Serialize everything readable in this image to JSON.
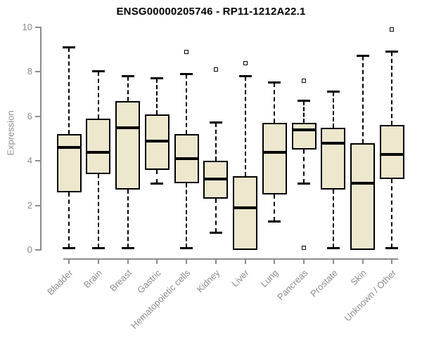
{
  "chart_data": {
    "type": "boxplot",
    "title": "ENSG00000205746 - RP11-1212A22.1",
    "ylabel": "Expression",
    "xlabel": "",
    "ylim": [
      0,
      10
    ],
    "yticks": [
      0,
      2,
      4,
      6,
      8,
      10
    ],
    "grid": false,
    "legend": null,
    "categories": [
      "Bladder",
      "Brain",
      "Breast",
      "Gastric",
      "Hematopoietic cells",
      "Kidney",
      "Liver",
      "Lung",
      "Pancreas",
      "Prostate",
      "Skin",
      "Unknown / Other"
    ],
    "series": [
      {
        "name": "Bladder",
        "whisker_low": 0.1,
        "q1": 2.6,
        "median": 4.6,
        "q3": 5.2,
        "whisker_high": 9.1,
        "outliers": []
      },
      {
        "name": "Brain",
        "whisker_low": 0.1,
        "q1": 3.4,
        "median": 4.4,
        "q3": 5.9,
        "whisker_high": 8.0,
        "outliers": []
      },
      {
        "name": "Breast",
        "whisker_low": 0.1,
        "q1": 2.7,
        "median": 5.5,
        "q3": 6.7,
        "whisker_high": 7.8,
        "outliers": []
      },
      {
        "name": "Gastric",
        "whisker_low": 3.0,
        "q1": 3.6,
        "median": 4.9,
        "q3": 6.1,
        "whisker_high": 7.7,
        "outliers": []
      },
      {
        "name": "Hematopoietic cells",
        "whisker_low": 0.1,
        "q1": 3.0,
        "median": 4.1,
        "q3": 5.2,
        "whisker_high": 7.9,
        "outliers": [
          8.9
        ]
      },
      {
        "name": "Kidney",
        "whisker_low": 0.8,
        "q1": 2.3,
        "median": 3.2,
        "q3": 4.0,
        "whisker_high": 5.7,
        "outliers": [
          8.1
        ]
      },
      {
        "name": "Liver",
        "whisker_low": 0.0,
        "q1": 0.0,
        "median": 1.9,
        "q3": 3.3,
        "whisker_high": 7.8,
        "outliers": [
          8.4
        ]
      },
      {
        "name": "Lung",
        "whisker_low": 1.3,
        "q1": 2.5,
        "median": 4.4,
        "q3": 5.7,
        "whisker_high": 7.5,
        "outliers": []
      },
      {
        "name": "Pancreas",
        "whisker_low": 3.0,
        "q1": 4.5,
        "median": 5.4,
        "q3": 5.7,
        "whisker_high": 6.7,
        "outliers": [
          7.6,
          0.1
        ]
      },
      {
        "name": "Prostate",
        "whisker_low": 0.1,
        "q1": 2.7,
        "median": 4.8,
        "q3": 5.5,
        "whisker_high": 7.1,
        "outliers": []
      },
      {
        "name": "Skin",
        "whisker_low": 0.0,
        "q1": 0.0,
        "median": 3.0,
        "q3": 4.8,
        "whisker_high": 8.7,
        "outliers": []
      },
      {
        "name": "Unknown / Other",
        "whisker_low": 0.1,
        "q1": 3.2,
        "median": 4.3,
        "q3": 5.6,
        "whisker_high": 8.9,
        "outliers": [
          9.9
        ]
      }
    ],
    "colors": {
      "box_fill": "#EDE7CE",
      "box_border": "#000000",
      "median": "#000000",
      "whisker": "#000000",
      "axis": "#8C8C8C",
      "tick_label": "#8C8C8C",
      "title": "#000000",
      "background": "#FFFFFF"
    }
  }
}
